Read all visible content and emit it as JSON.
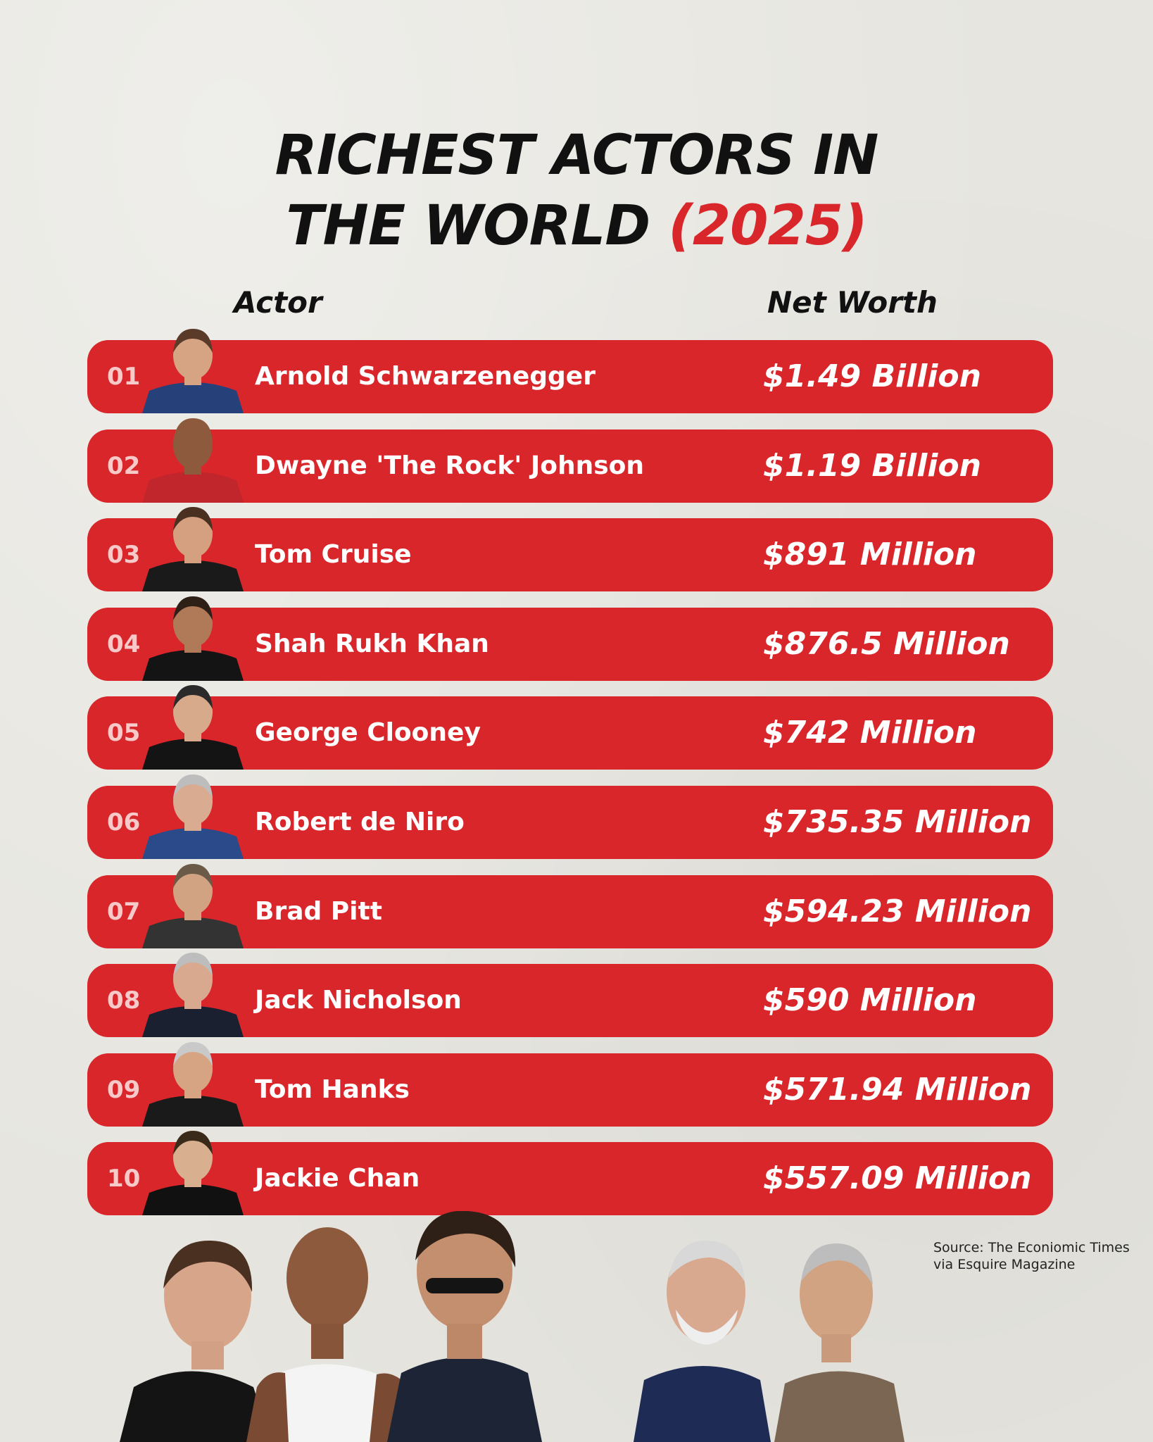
{
  "header": {
    "title_line1": "RICHEST ACTORS IN",
    "title_line2_main": "THE WORLD ",
    "title_line2_accent": "(2025)"
  },
  "columns": {
    "actor": "Actor",
    "net_worth": "Net Worth"
  },
  "chart_data": {
    "type": "table",
    "title": "RICHEST ACTORS IN THE WORLD (2025)",
    "columns": [
      "Actor",
      "Net Worth"
    ],
    "rows": [
      {
        "rank": "01",
        "actor": "Arnold Schwarzenegger",
        "net_worth": "$1.49 Billion"
      },
      {
        "rank": "02",
        "actor": "Dwayne 'The Rock' Johnson",
        "net_worth": "$1.19 Billion"
      },
      {
        "rank": "03",
        "actor": "Tom Cruise",
        "net_worth": "$891 Million"
      },
      {
        "rank": "04",
        "actor": "Shah Rukh Khan",
        "net_worth": "$876.5 Million"
      },
      {
        "rank": "05",
        "actor": "George Clooney",
        "net_worth": "$742 Million"
      },
      {
        "rank": "06",
        "actor": "Robert de Niro",
        "net_worth": "$735.35 Million"
      },
      {
        "rank": "07",
        "actor": "Brad Pitt",
        "net_worth": "$594.23 Million"
      },
      {
        "rank": "08",
        "actor": "Jack Nicholson",
        "net_worth": "$590 Million"
      },
      {
        "rank": "09",
        "actor": "Tom Hanks",
        "net_worth": "$571.94 Million"
      },
      {
        "rank": "10",
        "actor": "Jackie Chan",
        "net_worth": "$557.09 Million"
      }
    ]
  },
  "source": {
    "line1": "Source: The Econiomic Times",
    "line2": "via Esquire Magazine"
  },
  "colors": {
    "accent": "#d9262b",
    "background": "#e6e5df",
    "text": "#111111"
  }
}
